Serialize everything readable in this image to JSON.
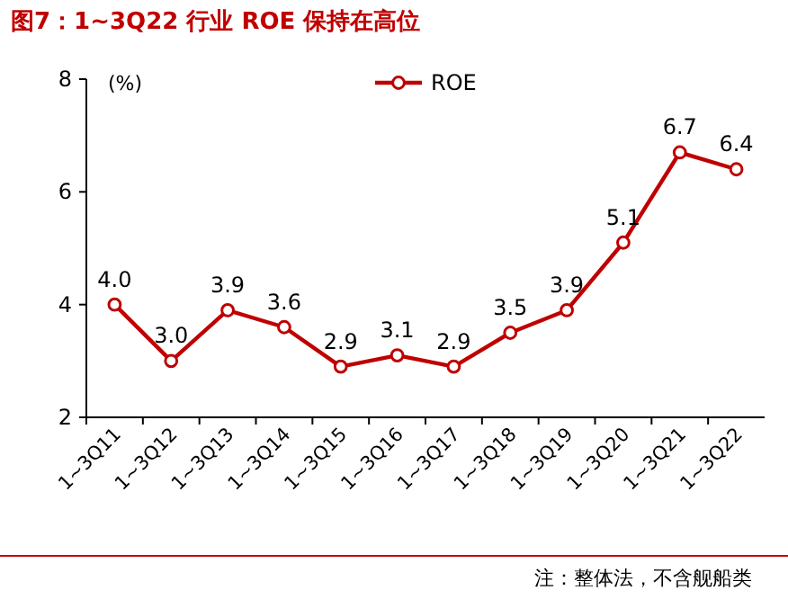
{
  "chart_data": {
    "type": "line",
    "title": "图7：1~3Q22 行业 ROE 保持在高位",
    "ylabel": "(%)",
    "categories": [
      "1~3Q11",
      "1~3Q12",
      "1~3Q13",
      "1~3Q14",
      "1~3Q15",
      "1~3Q16",
      "1~3Q17",
      "1~3Q18",
      "1~3Q19",
      "1~3Q20",
      "1~3Q21",
      "1~3Q22"
    ],
    "series": [
      {
        "name": "ROE",
        "color": "#c00000",
        "values": [
          4.0,
          3.0,
          3.9,
          3.6,
          2.9,
          3.1,
          2.9,
          3.5,
          3.9,
          5.1,
          6.7,
          6.4
        ],
        "value_labels": [
          "4.0",
          "3.0",
          "3.9",
          "3.6",
          "2.9",
          "3.1",
          "2.9",
          "3.5",
          "3.9",
          "5.1",
          "6.7",
          "6.4"
        ]
      }
    ],
    "ylim": [
      2,
      8
    ],
    "yticks": [
      2,
      4,
      6,
      8
    ],
    "legend": "top",
    "marker": "circle",
    "line_style": "solid",
    "annotations": [
      "注：整体法，不含舰船类"
    ]
  }
}
